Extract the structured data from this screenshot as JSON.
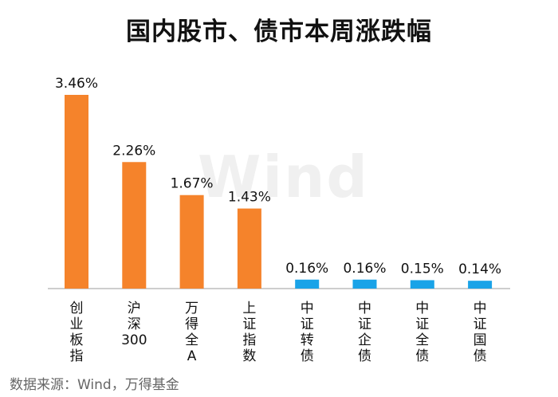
{
  "chart_data": {
    "type": "bar",
    "title": "国内股市、债市本周涨跌幅",
    "categories": [
      "创业板指",
      "沪深300",
      "万得全A",
      "上证指数",
      "中证转债",
      "中证企债",
      "中证全债",
      "中证国债"
    ],
    "values": [
      3.46,
      2.26,
      1.67,
      1.43,
      0.16,
      0.16,
      0.15,
      0.14
    ],
    "value_labels": [
      "3.46%",
      "2.26%",
      "1.67%",
      "1.43%",
      "0.16%",
      "0.16%",
      "0.15%",
      "0.14%"
    ],
    "bar_colors": [
      "#f5832b",
      "#f5832b",
      "#f5832b",
      "#f5832b",
      "#1aa3e8",
      "#1aa3e8",
      "#1aa3e8",
      "#1aa3e8"
    ],
    "ylim": [
      0,
      3.46
    ],
    "grid": false,
    "xlabel": "",
    "ylabel": ""
  },
  "watermark": "Wind",
  "source": "数据来源：Wind，万得基金"
}
